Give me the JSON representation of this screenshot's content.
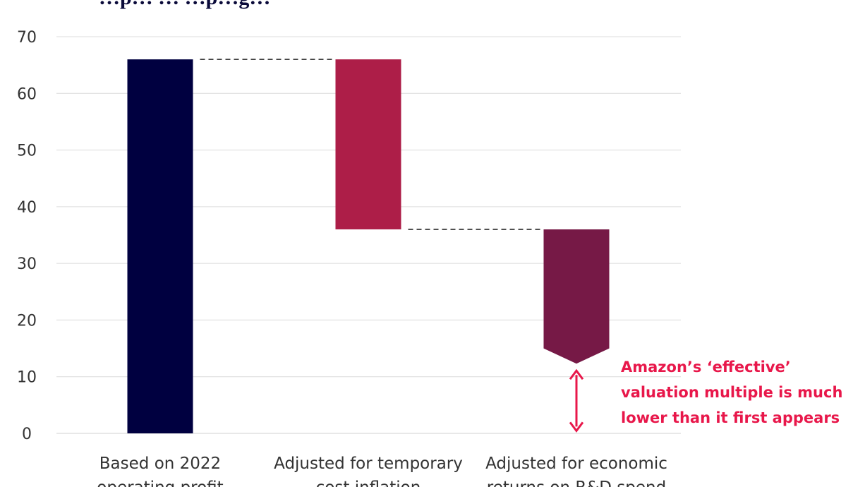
{
  "chart_data": {
    "type": "bar",
    "subtype": "waterfall",
    "title": "…p… … …p…g…",
    "categories": [
      [
        "Based on 2022",
        "operating profit"
      ],
      [
        "Adjusted for temporary",
        "cost inflation"
      ],
      [
        "Adjusted for economic",
        "returns on R&D spend"
      ]
    ],
    "bars": [
      {
        "low": 0,
        "high": 66,
        "color": "#000040",
        "shape": "rect"
      },
      {
        "low": 36,
        "high": 66,
        "color": "#ad1e48",
        "shape": "rect"
      },
      {
        "low": 12.3,
        "high": 36,
        "color": "#761946",
        "shape": "arrow-down",
        "arrow_shoulder": 15
      }
    ],
    "connectors": [
      {
        "value": 66,
        "from": 0,
        "to": 1
      },
      {
        "value": 36,
        "from": 1,
        "to": 2
      }
    ],
    "ylim": [
      0,
      70
    ],
    "yticks": [
      0,
      10,
      20,
      30,
      40,
      50,
      60,
      70
    ],
    "grid": true,
    "annotation": {
      "lines": [
        "Amazon’s ‘effective’",
        "valuation multiple is much",
        "lower than it first appears"
      ],
      "color": "#e8174a",
      "arrow_from": 0.2,
      "arrow_to": 12.3
    }
  }
}
